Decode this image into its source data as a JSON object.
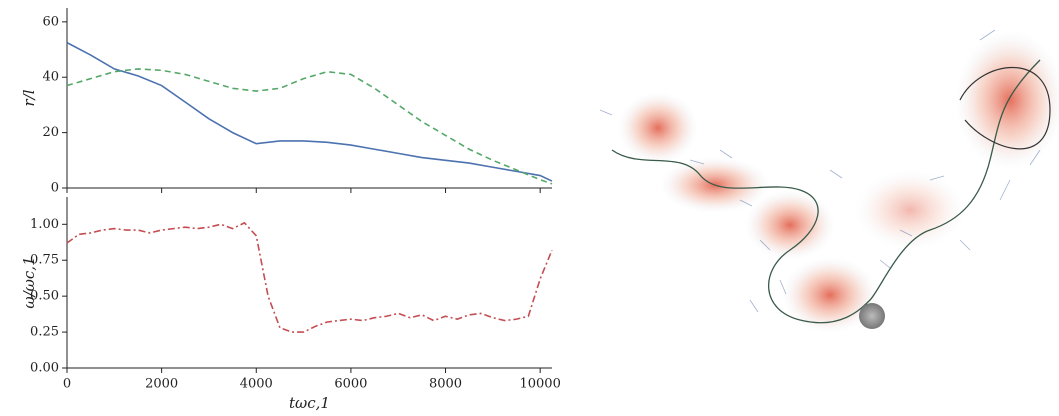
{
  "chart_data": [
    {
      "type": "line",
      "y_label": "r/l",
      "x": [
        0,
        500,
        1000,
        1500,
        2000,
        2500,
        3000,
        3500,
        4000,
        4500,
        5000,
        5500,
        6000,
        6500,
        7000,
        7500,
        8000,
        8500,
        9000,
        9500,
        10000,
        10250
      ],
      "series": [
        {
          "color": "#4c72b0",
          "dash": "solid",
          "values": [
            52.5,
            48,
            43,
            40.5,
            37,
            31,
            25,
            20,
            16,
            17,
            17,
            16.5,
            15.5,
            14,
            12.5,
            11,
            10,
            9,
            7.5,
            6,
            4.5,
            2.5
          ]
        },
        {
          "color": "#55a868",
          "dash": "dashed",
          "values": [
            37,
            39.5,
            42,
            43,
            42.5,
            41,
            38.5,
            36,
            35,
            36,
            39.5,
            42,
            41,
            36,
            30,
            24,
            19,
            14,
            10,
            6.5,
            3,
            1.5
          ]
        }
      ],
      "xlim": [
        0,
        10250
      ],
      "ylim": [
        0,
        65
      ],
      "yticks": [
        0,
        20,
        40,
        60
      ],
      "xticks": [
        0,
        2000,
        4000,
        6000,
        8000,
        10000
      ]
    },
    {
      "type": "line",
      "y_label": "ω/ωc,1",
      "x_label": "tωc,1",
      "x": [
        0,
        250,
        500,
        750,
        1000,
        1250,
        1500,
        1750,
        2000,
        2250,
        2500,
        2750,
        3000,
        3250,
        3500,
        3750,
        4000,
        4250,
        4500,
        4750,
        5000,
        5250,
        5500,
        5750,
        6000,
        6250,
        6500,
        6750,
        7000,
        7250,
        7500,
        7750,
        8000,
        8250,
        8500,
        8750,
        9000,
        9250,
        9500,
        9750,
        10000,
        10250
      ],
      "series": [
        {
          "color": "#c44e52",
          "dash": "dashdot",
          "values": [
            0.87,
            0.93,
            0.94,
            0.96,
            0.97,
            0.96,
            0.96,
            0.94,
            0.96,
            0.97,
            0.98,
            0.97,
            0.98,
            1.0,
            0.97,
            1.01,
            0.92,
            0.5,
            0.28,
            0.25,
            0.25,
            0.29,
            0.32,
            0.33,
            0.34,
            0.33,
            0.35,
            0.36,
            0.38,
            0.35,
            0.37,
            0.33,
            0.36,
            0.34,
            0.37,
            0.38,
            0.35,
            0.33,
            0.34,
            0.36,
            0.62,
            0.82
          ]
        }
      ],
      "xlim": [
        0,
        10250
      ],
      "ylim": [
        0,
        1.19
      ],
      "yticks": [
        {
          "value": 0,
          "label": "0.00"
        },
        {
          "value": 0.25,
          "label": "0.25"
        },
        {
          "value": 0.5,
          "label": "0.50"
        },
        {
          "value": 0.75,
          "label": "0.75"
        },
        {
          "value": 1,
          "label": "1.00"
        }
      ],
      "xticks": [
        0,
        2000,
        4000,
        6000,
        8000,
        10000
      ]
    }
  ]
}
